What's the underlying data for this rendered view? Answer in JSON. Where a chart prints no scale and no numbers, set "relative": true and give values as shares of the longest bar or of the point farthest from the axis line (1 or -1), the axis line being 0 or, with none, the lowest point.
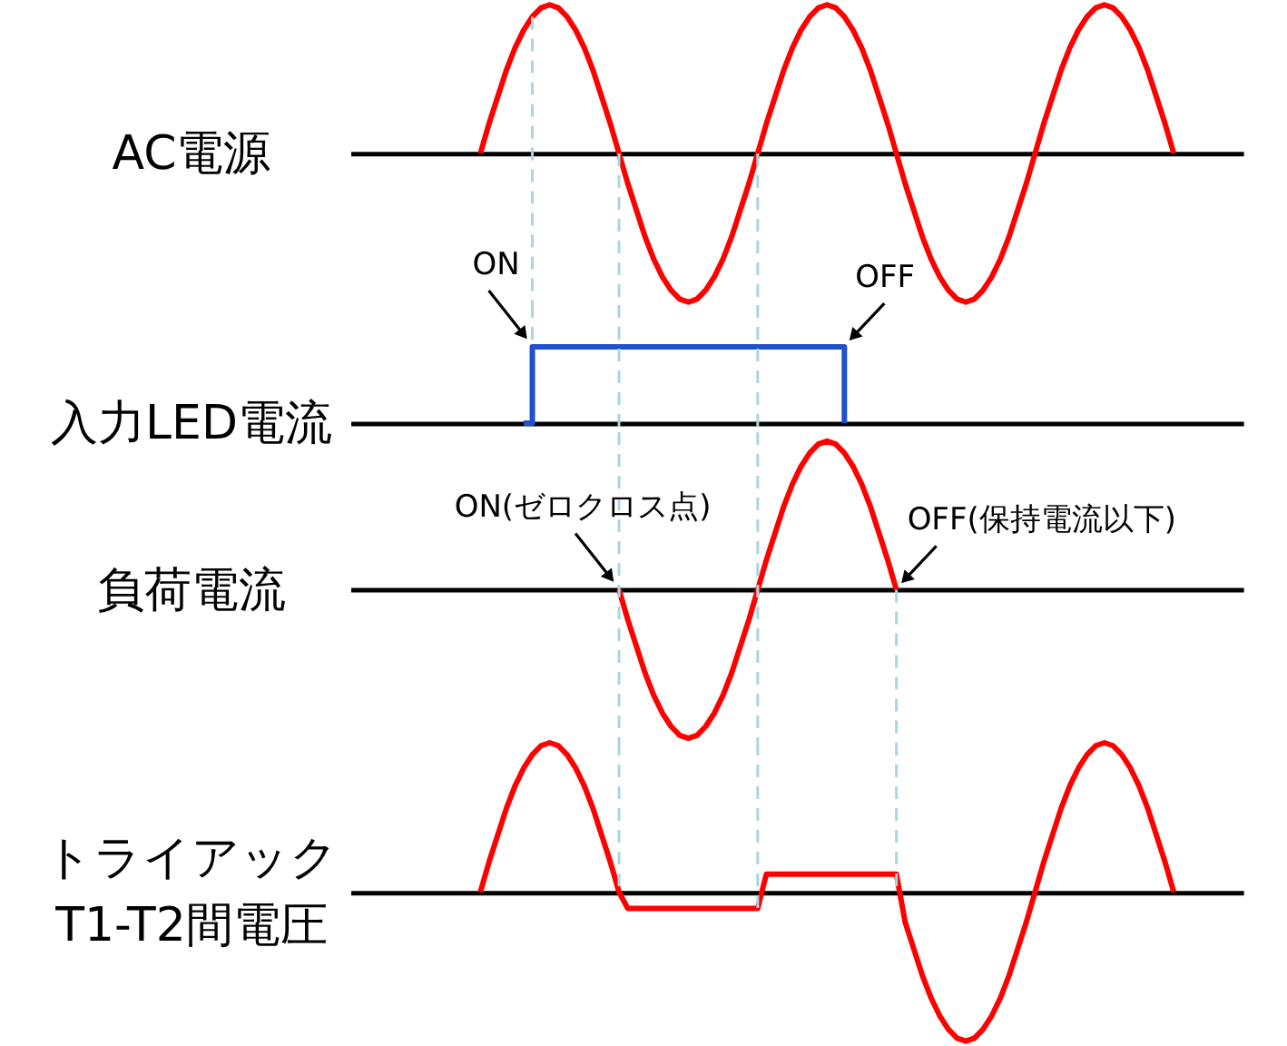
{
  "chart_data": [
    {
      "type": "line",
      "ylabel": "AC電源",
      "relative": true,
      "color": "#ff0000",
      "categories": [
        null,
        null,
        null,
        null,
        null,
        null,
        null,
        null,
        null,
        null,
        null,
        null,
        null,
        null,
        null,
        null,
        null,
        null,
        null,
        null,
        null,
        null,
        null,
        null,
        null,
        null,
        null,
        null,
        null,
        null,
        null,
        null,
        null,
        null,
        null,
        null,
        null,
        null,
        null,
        null,
        null,
        null,
        null,
        null,
        null,
        null,
        null,
        null,
        null,
        null,
        null,
        null,
        null,
        null,
        null,
        null,
        null,
        null,
        null,
        null,
        null,
        null,
        null,
        null,
        null,
        null,
        null,
        null,
        null,
        null,
        null,
        null,
        null,
        null,
        null,
        null,
        null,
        null,
        null,
        null,
        null,
        null,
        null,
        null,
        null,
        null,
        null,
        null,
        null,
        null,
        null,
        null,
        null,
        null,
        null,
        null,
        null,
        null,
        null,
        null,
        null,
        null,
        null,
        null
      ],
      "values": [
        null,
        null,
        null,
        null,
        null,
        null,
        null,
        null,
        null,
        null,
        null,
        null,
        null,
        null,
        null,
        0,
        0.2,
        0.38,
        0.56,
        0.71,
        0.83,
        0.92,
        0.98,
        1,
        0.98,
        0.92,
        0.83,
        0.71,
        0.56,
        0.38,
        0.2,
        0,
        -0.2,
        -0.38,
        -0.56,
        -0.71,
        -0.83,
        -0.92,
        -0.98,
        -1,
        -0.98,
        -0.92,
        -0.83,
        -0.71,
        -0.56,
        -0.38,
        -0.2,
        0,
        0.2,
        0.38,
        0.56,
        0.71,
        0.83,
        0.92,
        0.98,
        1,
        0.98,
        0.92,
        0.83,
        0.71,
        0.56,
        0.38,
        0.2,
        0,
        -0.2,
        -0.38,
        -0.56,
        -0.71,
        -0.83,
        -0.92,
        -0.98,
        -1,
        -0.98,
        -0.92,
        -0.83,
        -0.71,
        -0.56,
        -0.38,
        -0.2,
        0,
        0.2,
        0.38,
        0.56,
        0.71,
        0.83,
        0.92,
        0.98,
        1,
        0.98,
        0.92,
        0.83,
        0.71,
        0.56,
        0.38,
        0.2,
        0,
        null,
        null,
        null,
        null,
        null,
        null,
        null,
        null
      ]
    },
    {
      "type": "step",
      "ylabel": "入力LED電流",
      "relative": true,
      "color": "#1f51c8",
      "annotations": [
        "ON",
        "OFF"
      ],
      "categories": [
        null,
        null,
        null,
        null,
        null,
        null,
        null,
        null,
        null,
        null,
        null,
        null,
        null,
        null,
        null,
        null,
        null,
        null,
        null,
        null,
        null,
        null,
        null,
        null,
        null,
        null,
        null,
        null,
        null,
        null,
        null,
        null,
        null,
        null,
        null,
        null,
        null,
        null,
        null,
        null,
        null,
        null,
        null,
        null,
        null,
        null,
        null,
        null,
        null,
        null,
        null,
        null,
        null,
        null,
        null,
        null,
        null,
        null,
        null,
        null,
        null,
        null,
        null,
        null,
        null,
        null,
        null,
        null,
        null,
        null,
        null,
        null,
        null,
        null,
        null,
        null,
        null,
        null,
        null,
        null,
        null,
        null,
        null,
        null,
        null,
        null,
        null,
        null,
        null,
        null,
        null,
        null,
        null,
        null,
        null,
        null,
        null,
        null,
        null,
        null,
        null,
        null,
        null,
        null
      ],
      "values": [
        null,
        null,
        null,
        null,
        null,
        null,
        null,
        null,
        null,
        null,
        null,
        null,
        null,
        null,
        null,
        null,
        null,
        null,
        null,
        null,
        0,
        1,
        1,
        1,
        1,
        1,
        1,
        1,
        1,
        1,
        1,
        1,
        1,
        1,
        1,
        1,
        1,
        1,
        1,
        1,
        1,
        1,
        1,
        1,
        1,
        1,
        1,
        1,
        1,
        1,
        1,
        1,
        1,
        1,
        1,
        1,
        1,
        0,
        null,
        null,
        null,
        null,
        null,
        null,
        null,
        null,
        null,
        null,
        null,
        null,
        null,
        null,
        null,
        null,
        null,
        null,
        null,
        null,
        null,
        null,
        null,
        null,
        null,
        null,
        null,
        null,
        null,
        null,
        null,
        null,
        null,
        null,
        null,
        null,
        null,
        null,
        null,
        null,
        null,
        null,
        null,
        null,
        null,
        null
      ]
    },
    {
      "type": "line",
      "ylabel": "負荷電流",
      "relative": true,
      "color": "#ff0000",
      "annotations": [
        "ON(ゼロクロス点)",
        "OFF(保持電流以下)"
      ],
      "categories": [
        null,
        null,
        null,
        null,
        null,
        null,
        null,
        null,
        null,
        null,
        null,
        null,
        null,
        null,
        null,
        null,
        null,
        null,
        null,
        null,
        null,
        null,
        null,
        null,
        null,
        null,
        null,
        null,
        null,
        null,
        null,
        null,
        null,
        null,
        null,
        null,
        null,
        null,
        null,
        null,
        null,
        null,
        null,
        null,
        null,
        null,
        null,
        null,
        null,
        null,
        null,
        null,
        null,
        null,
        null,
        null,
        null,
        null,
        null,
        null,
        null,
        null,
        null,
        null,
        null,
        null,
        null,
        null,
        null,
        null,
        null,
        null,
        null,
        null,
        null,
        null,
        null,
        null,
        null,
        null,
        null,
        null,
        null,
        null,
        null,
        null,
        null,
        null,
        null,
        null,
        null,
        null,
        null,
        null,
        null,
        null,
        null,
        null,
        null,
        null,
        null,
        null,
        null,
        null
      ],
      "values": [
        null,
        null,
        null,
        null,
        null,
        null,
        null,
        null,
        null,
        null,
        null,
        null,
        null,
        null,
        null,
        null,
        null,
        null,
        null,
        null,
        null,
        null,
        null,
        null,
        null,
        null,
        null,
        null,
        null,
        null,
        null,
        0,
        -0.2,
        -0.38,
        -0.56,
        -0.71,
        -0.83,
        -0.92,
        -0.98,
        -1,
        -0.98,
        -0.92,
        -0.83,
        -0.71,
        -0.56,
        -0.38,
        -0.2,
        0,
        0.2,
        0.38,
        0.56,
        0.71,
        0.83,
        0.92,
        0.98,
        1,
        0.98,
        0.92,
        0.83,
        0.71,
        0.56,
        0.38,
        0.2,
        0,
        null,
        null,
        null,
        null,
        null,
        null,
        null,
        null,
        null,
        null,
        null,
        null,
        null,
        null,
        null,
        null,
        null,
        null,
        null,
        null,
        null,
        null,
        null,
        null,
        null,
        null,
        null,
        null,
        null,
        null,
        null,
        null,
        null,
        null,
        null,
        null,
        null,
        null,
        null,
        null
      ]
    },
    {
      "type": "line",
      "ylabel": "トライアック\nT1-T2間電圧",
      "relative": true,
      "color": "#ff0000",
      "categories": [
        null,
        null,
        null,
        null,
        null,
        null,
        null,
        null,
        null,
        null,
        null,
        null,
        null,
        null,
        null,
        null,
        null,
        null,
        null,
        null,
        null,
        null,
        null,
        null,
        null,
        null,
        null,
        null,
        null,
        null,
        null,
        null,
        null,
        null,
        null,
        null,
        null,
        null,
        null,
        null,
        null,
        null,
        null,
        null,
        null,
        null,
        null,
        null,
        null,
        null,
        null,
        null,
        null,
        null,
        null,
        null,
        null,
        null,
        null,
        null,
        null,
        null,
        null,
        null,
        null,
        null,
        null,
        null,
        null,
        null,
        null,
        null,
        null,
        null,
        null,
        null,
        null,
        null,
        null,
        null,
        null,
        null,
        null,
        null,
        null,
        null,
        null,
        null,
        null,
        null,
        null,
        null,
        null,
        null,
        null,
        null,
        null,
        null,
        null,
        null,
        null,
        null,
        null,
        null
      ],
      "values": [
        null,
        null,
        null,
        null,
        null,
        null,
        null,
        null,
        null,
        null,
        null,
        null,
        null,
        null,
        null,
        0,
        0.2,
        0.38,
        0.56,
        0.71,
        0.83,
        0.92,
        0.98,
        1,
        0.98,
        0.92,
        0.83,
        0.71,
        0.56,
        0.38,
        0.2,
        0,
        -0.11,
        -0.11,
        -0.11,
        -0.11,
        -0.11,
        -0.11,
        -0.11,
        -0.11,
        -0.11,
        -0.11,
        -0.11,
        -0.11,
        -0.11,
        -0.11,
        -0.11,
        -0.11,
        0.12,
        0.12,
        0.12,
        0.12,
        0.12,
        0.12,
        0.12,
        0.12,
        0.12,
        0.12,
        0.12,
        0.12,
        0.12,
        0.12,
        0.12,
        0.12,
        -0.2,
        -0.38,
        -0.56,
        -0.71,
        -0.83,
        -0.92,
        -0.98,
        -1,
        -0.98,
        -0.92,
        -0.83,
        -0.71,
        -0.56,
        -0.38,
        -0.2,
        0,
        0.2,
        0.38,
        0.56,
        0.71,
        0.83,
        0.92,
        0.98,
        1,
        0.98,
        0.92,
        0.83,
        0.71,
        0.56,
        0.38,
        0.2,
        0,
        null,
        null,
        null,
        null,
        null,
        null,
        null,
        null
      ]
    }
  ]
}
